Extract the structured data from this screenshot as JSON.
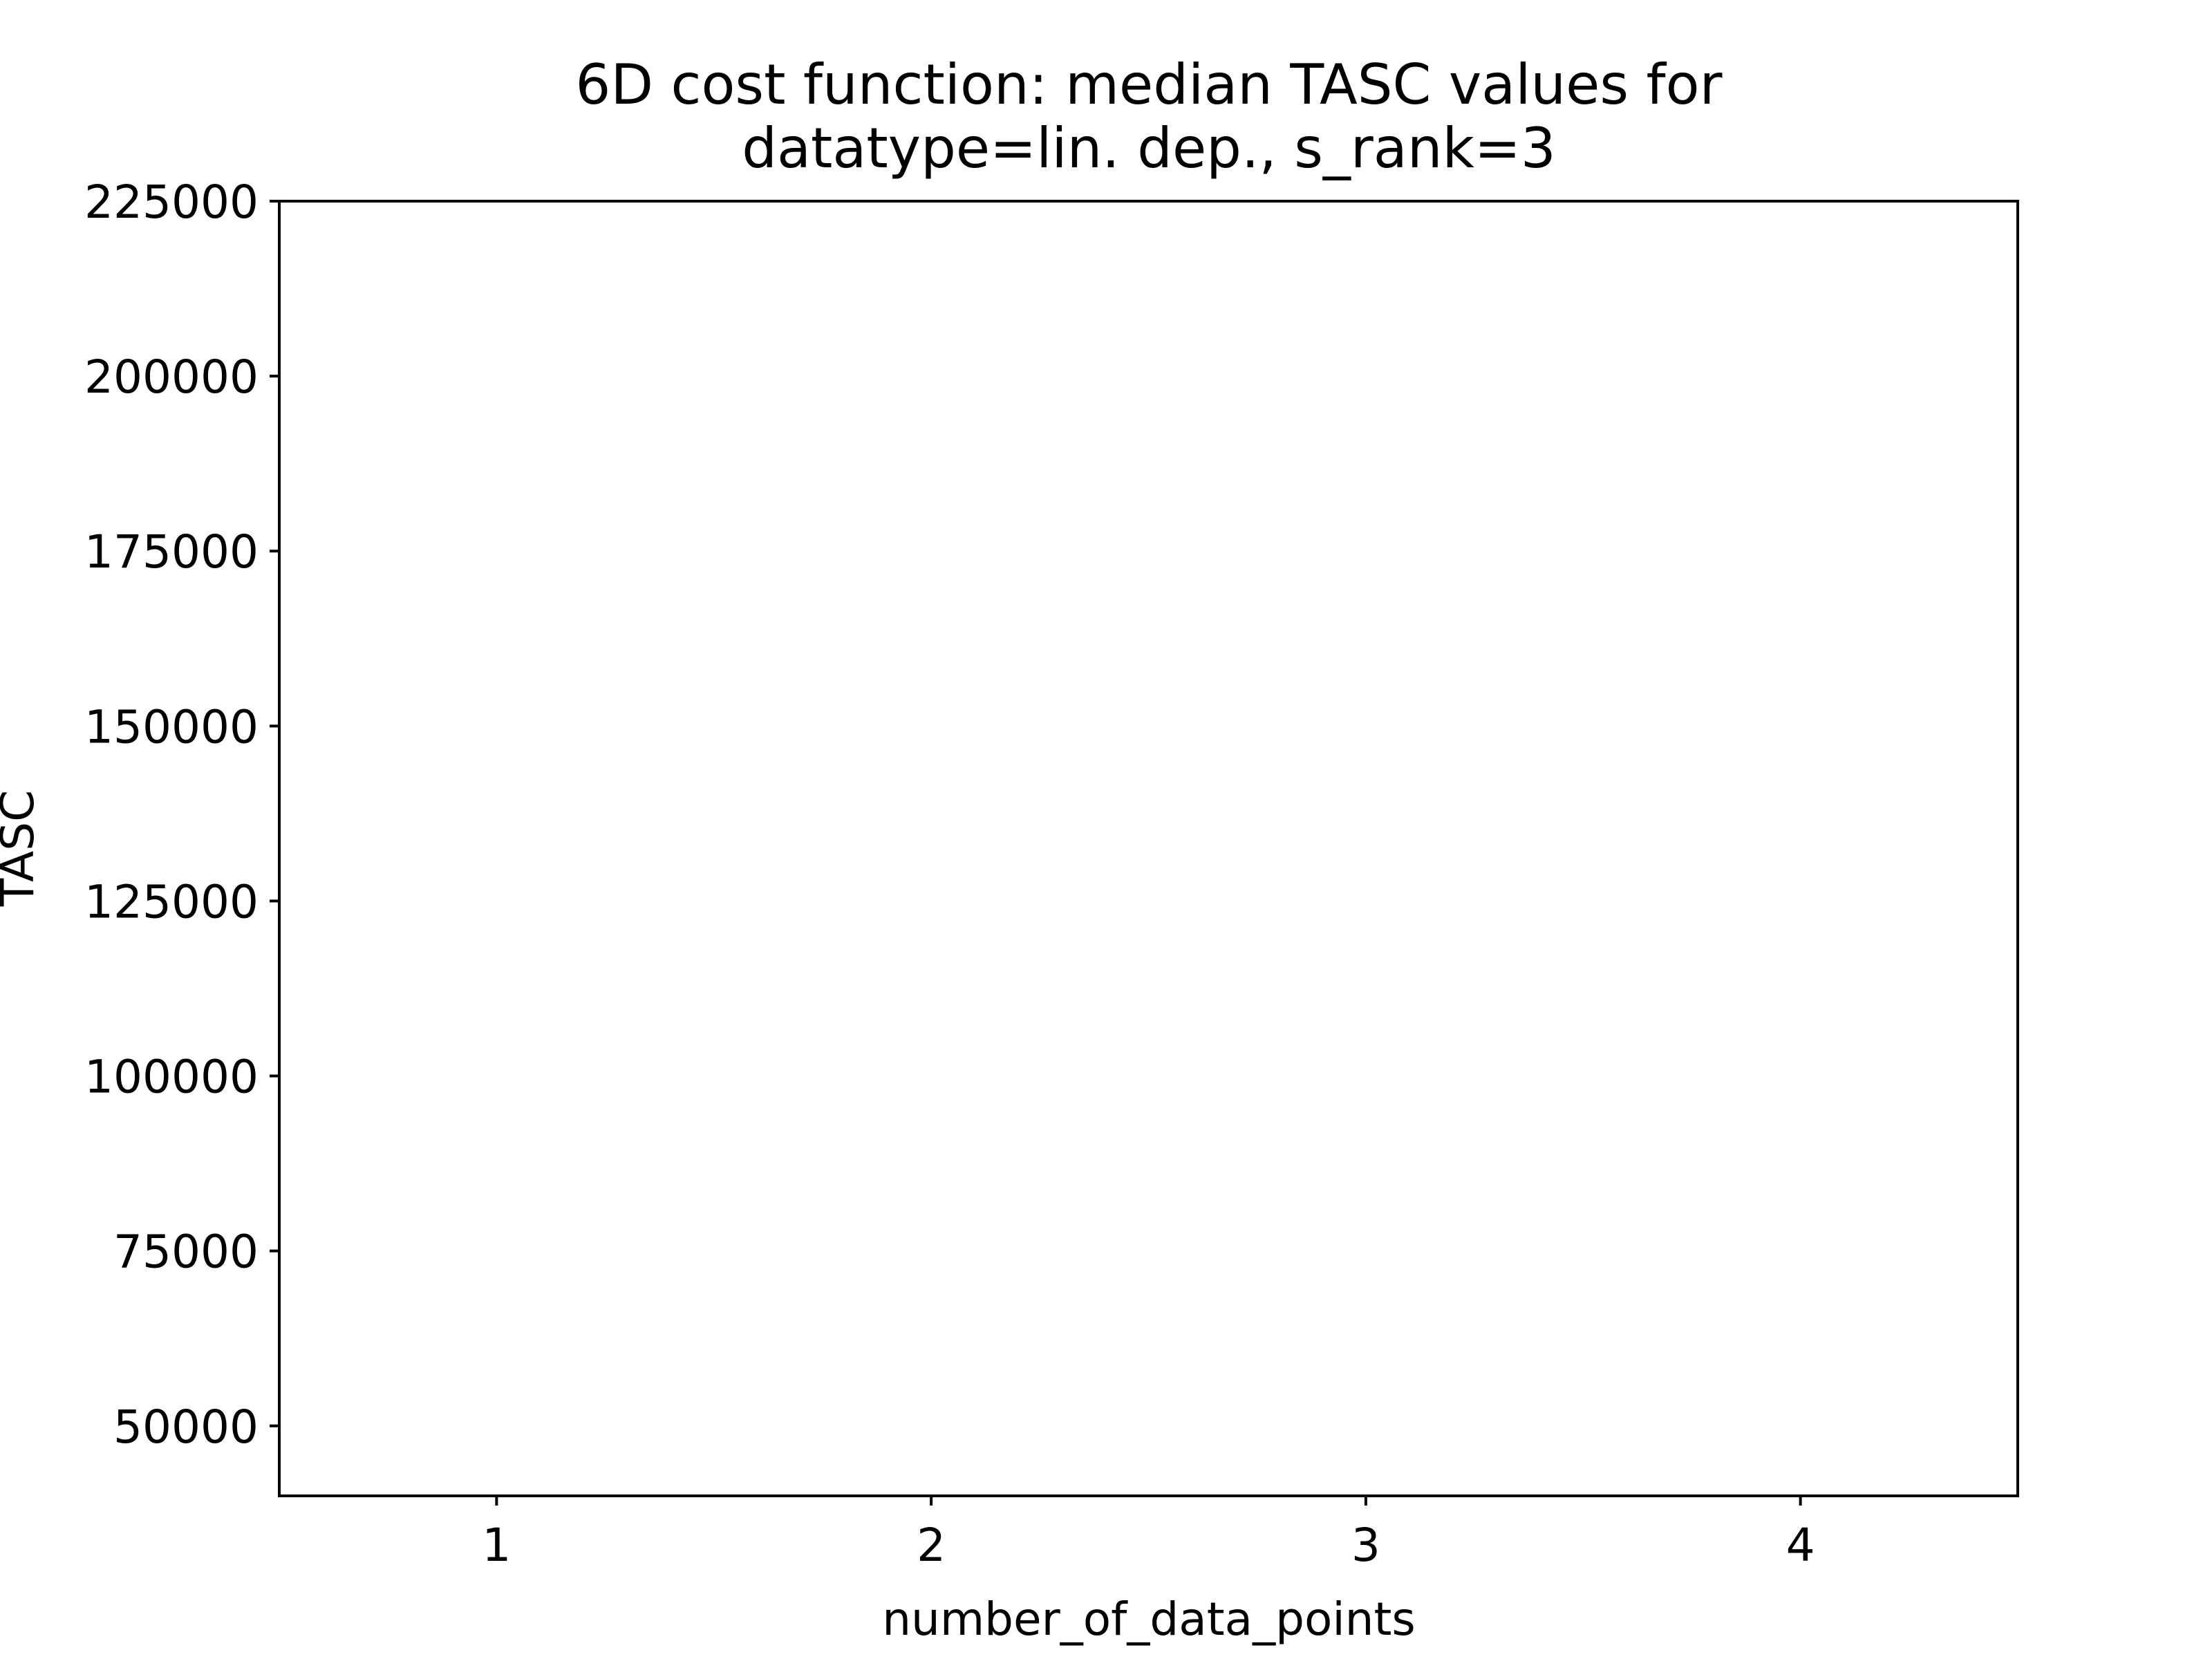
{
  "chart_data": {
    "type": "line",
    "title_lines": [
      "6D cost function: median TASC values for",
      "datatype=lin. dep., s_rank=3"
    ],
    "xlabel": "number_of_data_points",
    "ylabel": "TASC",
    "xlim": [
      0.5,
      4.5
    ],
    "ylim": [
      40000,
      225000
    ],
    "x_ticks": [
      1,
      2,
      3,
      4
    ],
    "y_ticks": [
      50000,
      75000,
      100000,
      125000,
      150000,
      175000,
      200000,
      225000
    ],
    "grid": false,
    "series": []
  }
}
